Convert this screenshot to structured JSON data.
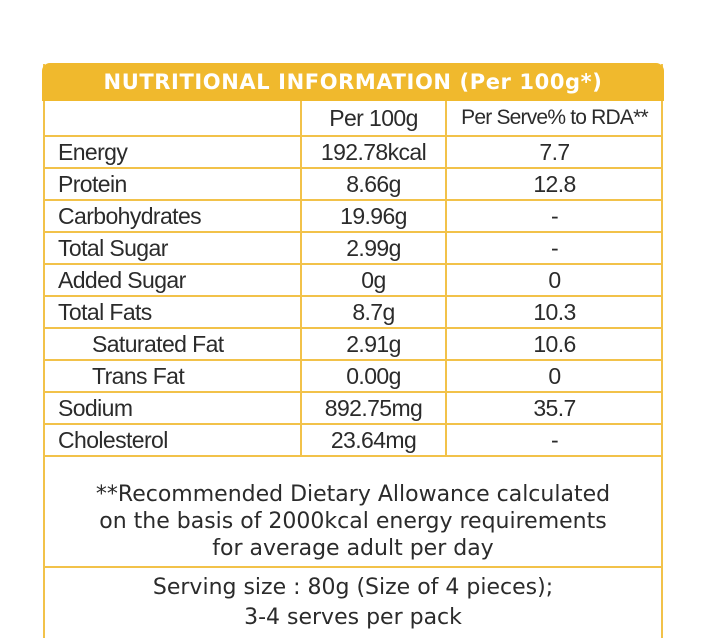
{
  "colors": {
    "accent": "#f0b92d",
    "border": "#f2c24a",
    "text": "#2b2b2b"
  },
  "header": {
    "title": "NUTRITIONAL INFORMATION (Per 100g*)"
  },
  "table": {
    "columns": [
      "",
      "Per 100g",
      "Per Serve% to RDA**"
    ],
    "rows": [
      {
        "name": "Energy",
        "per100g": "192.78kcal",
        "rda": "7.7",
        "sub": false
      },
      {
        "name": "Protein",
        "per100g": "8.66g",
        "rda": "12.8",
        "sub": false
      },
      {
        "name": "Carbohydrates",
        "per100g": "19.96g",
        "rda": "-",
        "sub": false
      },
      {
        "name": "Total Sugar",
        "per100g": "2.99g",
        "rda": "-",
        "sub": false
      },
      {
        "name": "Added Sugar",
        "per100g": "0g",
        "rda": "0",
        "sub": false
      },
      {
        "name": "Total Fats",
        "per100g": "8.7g",
        "rda": "10.3",
        "sub": false
      },
      {
        "name": "Saturated Fat",
        "per100g": "2.91g",
        "rda": "10.6",
        "sub": true
      },
      {
        "name": "Trans Fat",
        "per100g": "0.00g",
        "rda": "0",
        "sub": true
      },
      {
        "name": "Sodium",
        "per100g": "892.75mg",
        "rda": "35.7",
        "sub": false
      },
      {
        "name": "Cholesterol",
        "per100g": "23.64mg",
        "rda": "-",
        "sub": false
      }
    ]
  },
  "footnote": {
    "lines": [
      "**Recommended Dietary Allowance calculated",
      "on the basis of 2000kcal energy requirements",
      "for average adult per day"
    ]
  },
  "serving": {
    "lines": [
      "Serving size : 80g (Size of 4 pieces);",
      "3-4 serves per pack"
    ]
  }
}
